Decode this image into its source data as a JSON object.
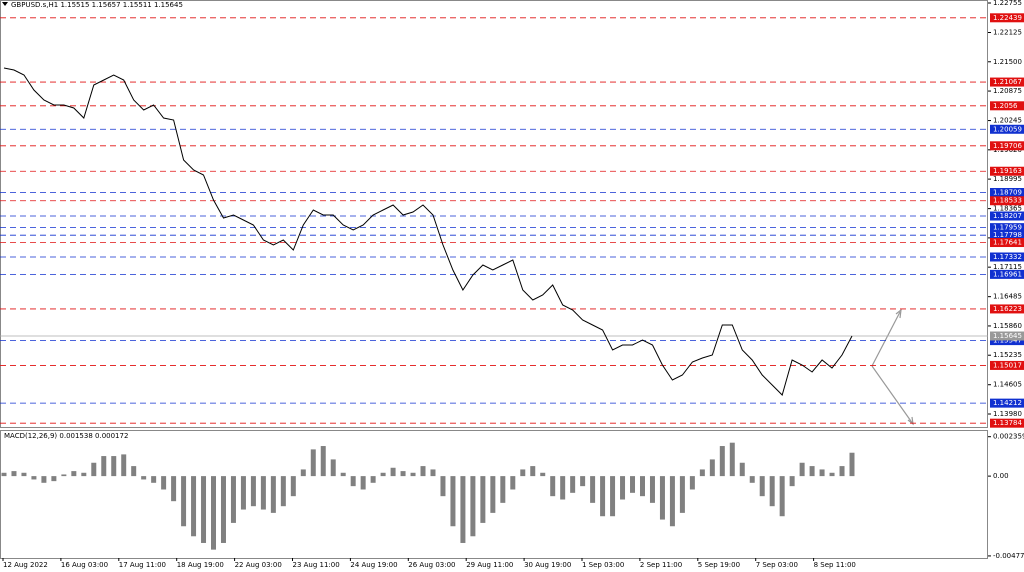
{
  "chart_data": [
    {
      "type": "line",
      "title": "GBPUSD.s,H1  1.15515 1.15657 1.15511 1.15645",
      "color": "#000000",
      "values": [
        1.21367,
        1.21324,
        1.21218,
        1.20897,
        1.20684,
        1.20577,
        1.20577,
        1.20513,
        1.203,
        1.21004,
        1.21111,
        1.21218,
        1.21111,
        1.20684,
        1.2047,
        1.20577,
        1.203,
        1.20257,
        1.19403,
        1.19189,
        1.19083,
        1.18549,
        1.18165,
        1.18229,
        1.18122,
        1.18015,
        1.17695,
        1.17588,
        1.17695,
        1.17481,
        1.18015,
        1.18335,
        1.18229,
        1.18229,
        1.18015,
        1.17908,
        1.18015,
        1.18229,
        1.18335,
        1.18442,
        1.18229,
        1.18293,
        1.18442,
        1.18229,
        1.17588,
        1.17054,
        1.16627,
        1.16948,
        1.17161,
        1.17054,
        1.17161,
        1.17268,
        1.16627,
        1.16414,
        1.16521,
        1.16734,
        1.16307,
        1.162,
        1.15987,
        1.1588,
        1.15773,
        1.15346,
        1.15453,
        1.15453,
        1.1556,
        1.15453,
        1.15026,
        1.14706,
        1.14813,
        1.1509,
        1.15176,
        1.1524,
        1.1588,
        1.1588,
        1.15346,
        1.15133,
        1.14813,
        1.14599,
        1.14386,
        1.15133,
        1.15026,
        1.14877,
        1.15133,
        1.14962,
        1.1524,
        1.15645
      ],
      "ylim": [
        1.13681,
        1.22819
      ],
      "yticks": [
        1.22755,
        1.22125,
        {
          "value": 1.215,
          "label": "1.21500"
        },
        1.20875,
        1.20245,
        {
          "value": 1.1962,
          "label": "1.19620"
        },
        1.18995,
        1.18365,
        {
          "value": 1.1774,
          "label": "1.17740"
        },
        1.17115,
        1.16485,
        {
          "value": 1.1586,
          "label": "1.15860"
        },
        1.15235,
        1.14605,
        {
          "value": 1.1398,
          "label": "1.13980"
        }
      ],
      "levels": [
        {
          "value": 1.22439,
          "color": "#e01010"
        },
        {
          "value": 1.21067,
          "color": "#e01010"
        },
        {
          "value": 1.2056,
          "color": "#e01010"
        },
        {
          "value": 1.20059,
          "color": "#1030d0"
        },
        {
          "value": 1.19706,
          "color": "#e01010"
        },
        {
          "value": 1.19163,
          "color": "#e01010"
        },
        {
          "value": 1.18709,
          "color": "#1030d0"
        },
        {
          "value": 1.18533,
          "color": "#e01010"
        },
        {
          "value": 1.18207,
          "color": "#1030d0"
        },
        {
          "value": 1.17959,
          "color": "#1030d0"
        },
        {
          "value": 1.17798,
          "color": "#1030d0"
        },
        {
          "value": 1.17641,
          "color": "#e01010"
        },
        {
          "value": 1.17332,
          "color": "#1030d0"
        },
        {
          "value": 1.16961,
          "color": "#1030d0"
        },
        {
          "value": 1.16223,
          "color": "#e01010"
        },
        {
          "value": 1.15547,
          "color": "#1030d0"
        },
        {
          "value": 1.15017,
          "color": "#e01010"
        },
        {
          "value": 1.14212,
          "color": "#1030d0"
        },
        {
          "value": 1.13784,
          "color": "#e01010"
        }
      ],
      "current_price": 1.15645
    },
    {
      "type": "bar",
      "title": "MACD(12,26,9) 0.001538 0.000172",
      "color": "#808080",
      "values": [
        0.0002,
        0.0003,
        0.0002,
        -0.0002,
        -0.0004,
        -0.0003,
        0.0001,
        0.0003,
        0.0002,
        0.0008,
        0.0012,
        0.0012,
        0.0013,
        0.0006,
        -0.0002,
        -0.0004,
        -0.0008,
        -0.0015,
        -0.003,
        -0.0036,
        -0.004,
        -0.0044,
        -0.004,
        -0.0028,
        -0.002,
        -0.0018,
        -0.002,
        -0.0022,
        -0.0018,
        -0.0012,
        0.0004,
        0.0016,
        0.0018,
        0.001,
        0.0002,
        -0.0006,
        -0.0008,
        -0.0004,
        0.0002,
        0.0005,
        0.0003,
        0.0002,
        0.0006,
        0.0004,
        -0.0012,
        -0.003,
        -0.004,
        -0.0036,
        -0.0028,
        -0.0022,
        -0.0016,
        -0.0008,
        0.0004,
        0.0006,
        0.0002,
        -0.0012,
        -0.0014,
        -0.001,
        -0.0006,
        -0.0016,
        -0.0024,
        -0.0024,
        -0.0014,
        -0.001,
        -0.0012,
        -0.0016,
        -0.0026,
        -0.003,
        -0.0022,
        -0.0008,
        0.0004,
        0.001,
        0.0018,
        0.002,
        0.0008,
        -0.0004,
        -0.0012,
        -0.0018,
        -0.0024,
        -0.0006,
        0.0008,
        0.0006,
        0.0004,
        0.0002,
        0.0006,
        0.0014
      ],
      "ylim": [
        -0.0049,
        0.0027
      ],
      "yticks": [
        0.002359,
        {
          "value": 0,
          "label": "0.00"
        },
        -0.004776
      ]
    }
  ],
  "time_labels": [
    "12 Aug 2022",
    "16 Aug 03:00",
    "17 Aug 11:00",
    "18 Aug 19:00",
    "22 Aug 03:00",
    "23 Aug 11:00",
    "24 Aug 19:00",
    "26 Aug 03:00",
    "29 Aug 11:00",
    "30 Aug 19:00",
    "1 Sep 03:00",
    "2 Sep 11:00",
    "5 Sep 19:00",
    "7 Sep 03:00",
    "8 Sep 11:00"
  ]
}
